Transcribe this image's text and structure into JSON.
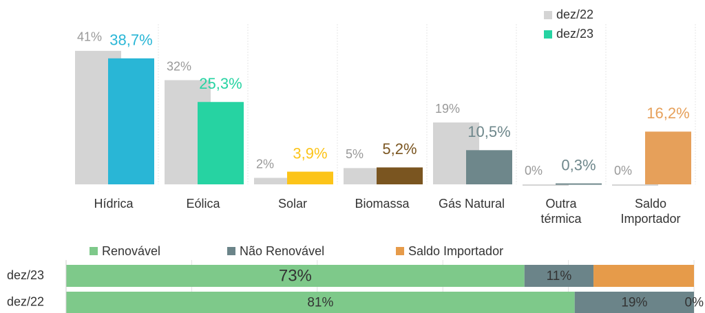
{
  "chart_data": [
    {
      "type": "bar",
      "categories": [
        "Hídrica",
        "Eólica",
        "Solar",
        "Biomassa",
        "Gás Natural",
        "Outra\ntérmica",
        "Saldo\nImportador"
      ],
      "series": [
        {
          "name": "dez/22",
          "color": "#d4d4d4",
          "values": [
            41,
            32,
            2,
            5,
            19,
            0,
            0
          ],
          "value_labels": [
            "41%",
            "32%",
            "2%",
            "5%",
            "19%",
            "0%",
            "0%"
          ]
        },
        {
          "name": "dez/23",
          "color": "#26d3a2",
          "colors": [
            "#29b6d6",
            "#26d3a2",
            "#fcc419",
            "#7a5520",
            "#6e878b",
            "#6e878b",
            "#e6a05a"
          ],
          "values": [
            38.7,
            25.3,
            3.9,
            5.2,
            10.5,
            0.3,
            16.2
          ],
          "value_labels": [
            "38,7%",
            "25,3%",
            "3,9%",
            "5,2%",
            "10,5%",
            "0,3%",
            "16,2%"
          ]
        }
      ],
      "ylim": [
        0,
        45
      ],
      "legend": "top-right"
    },
    {
      "type": "stacked-hbar",
      "categories": [
        "dez/23",
        "dez/22"
      ],
      "series": [
        {
          "name": "Renovável",
          "color": "#7ec98a",
          "values": [
            73,
            81
          ],
          "value_labels": [
            "73%",
            "81%"
          ]
        },
        {
          "name": "Não Renovável",
          "color": "#6b8489",
          "values": [
            11,
            19
          ],
          "value_labels": [
            "11%",
            "19%"
          ]
        },
        {
          "name": "Saldo Importador",
          "color": "#e69b4a",
          "values": [
            16,
            0
          ],
          "value_labels": [
            null,
            "0%"
          ]
        }
      ],
      "xlim": [
        0,
        100
      ],
      "xticks": [
        0,
        20,
        40,
        60,
        80,
        100
      ],
      "grid": true,
      "legend": "top"
    }
  ]
}
